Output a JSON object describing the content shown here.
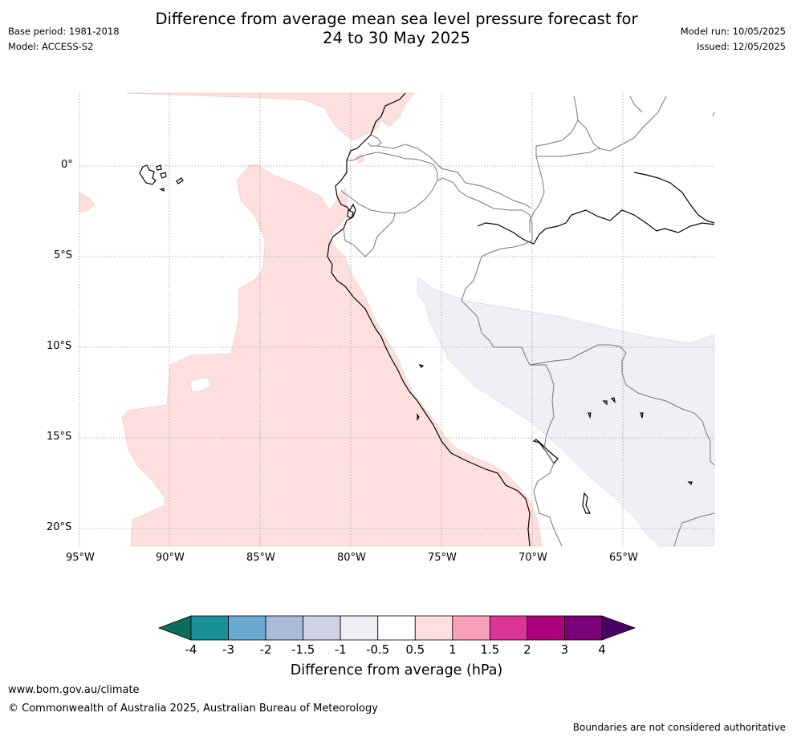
{
  "header": {
    "title_line1": "Difference from average mean sea level pressure forecast for",
    "title_line2": "24 to 30 May 2025",
    "base_period": "Base period: 1981-2018",
    "model": "Model: ACCESS-S2",
    "model_run": "Model run: 10/05/2025",
    "issued": "Issued: 12/05/2025"
  },
  "map": {
    "lat_labels": [
      "0°",
      "5°S",
      "10°S",
      "15°S",
      "20°S"
    ],
    "lon_labels": [
      "95°W",
      "90°W",
      "85°W",
      "80°W",
      "75°W",
      "70°W",
      "65°W"
    ],
    "regions": [
      {
        "name": "pacific-positive-anomaly",
        "category": "0.5 to 1",
        "color": "#fde0de"
      },
      {
        "name": "northern-positive-anomaly",
        "category": "0.5 to 1",
        "color": "#fde0de"
      },
      {
        "name": "interior-negative-anomaly",
        "category": "-1 to -0.5",
        "color": "#f2eef5"
      }
    ]
  },
  "colorbar": {
    "title": "Difference from average (hPa)",
    "labels": [
      "-4",
      "-3",
      "-2",
      "-1.5",
      "-1",
      "-0.5",
      "0.5",
      "1",
      "1.5",
      "2",
      "3",
      "4"
    ],
    "low_extend_color": "#0b6b5c",
    "high_extend_color": "#4b0066",
    "colors": [
      "#1a9199",
      "#6aaad0",
      "#a9bbd9",
      "#d0d2e6",
      "#f2eef5",
      "#ffffff",
      "#fde0de",
      "#f9a1bb",
      "#dd3497",
      "#ae017e",
      "#7a0177"
    ]
  },
  "footer": {
    "url": "www.bom.gov.au/climate",
    "copyright": "© Commonwealth of Australia 2025, Australian Bureau of Meteorology",
    "disclaimer": "Boundaries are not considered authoritative"
  }
}
